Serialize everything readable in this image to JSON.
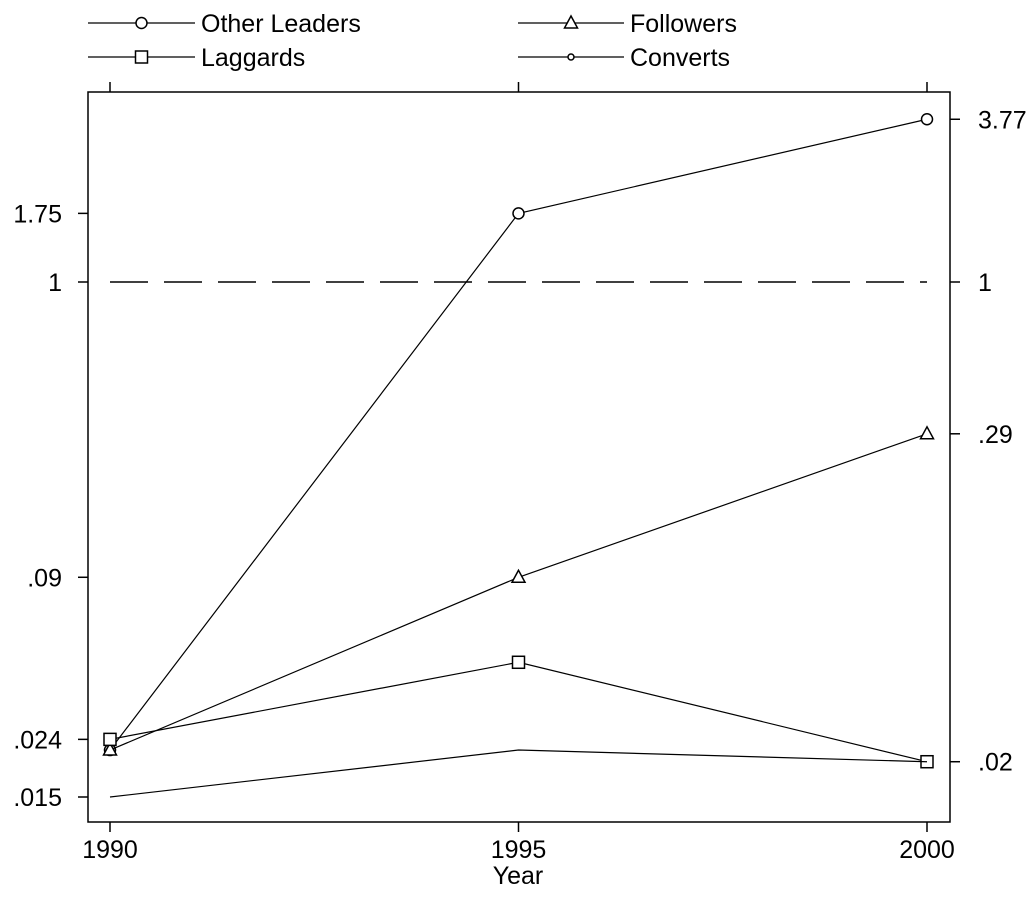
{
  "chart_data": {
    "type": "line",
    "title": "",
    "xlabel": "Year",
    "ylabel": "",
    "scale": "log",
    "grid": false,
    "legend_position": "top",
    "x": [
      1990,
      1995,
      2000
    ],
    "x_ticks": [
      "1990",
      "1995",
      "2000"
    ],
    "left_ticks": [
      {
        "value": 1.75,
        "label": "1.75"
      },
      {
        "value": 1,
        "label": "1"
      },
      {
        "value": 0.09,
        "label": ".09"
      },
      {
        "value": 0.024,
        "label": ".024"
      },
      {
        "value": 0.015,
        "label": ".015"
      }
    ],
    "right_ticks": [
      {
        "value": 3.77,
        "label": "3.77"
      },
      {
        "value": 1,
        "label": "1"
      },
      {
        "value": 0.29,
        "label": ".29"
      },
      {
        "value": 0.02,
        "label": ".02"
      }
    ],
    "reference_line": {
      "value": 1,
      "style": "dashed"
    },
    "series": [
      {
        "name": "Other Leaders",
        "marker": "circle",
        "values": [
          0.022,
          1.75,
          3.77
        ]
      },
      {
        "name": "Followers",
        "marker": "triangle",
        "values": [
          0.022,
          0.09,
          0.29
        ]
      },
      {
        "name": "Laggards",
        "marker": "square",
        "values": [
          0.024,
          0.045,
          0.02
        ]
      },
      {
        "name": "Converts",
        "marker": "small-circle",
        "values": [
          0.015,
          0.022,
          0.02
        ]
      }
    ]
  }
}
